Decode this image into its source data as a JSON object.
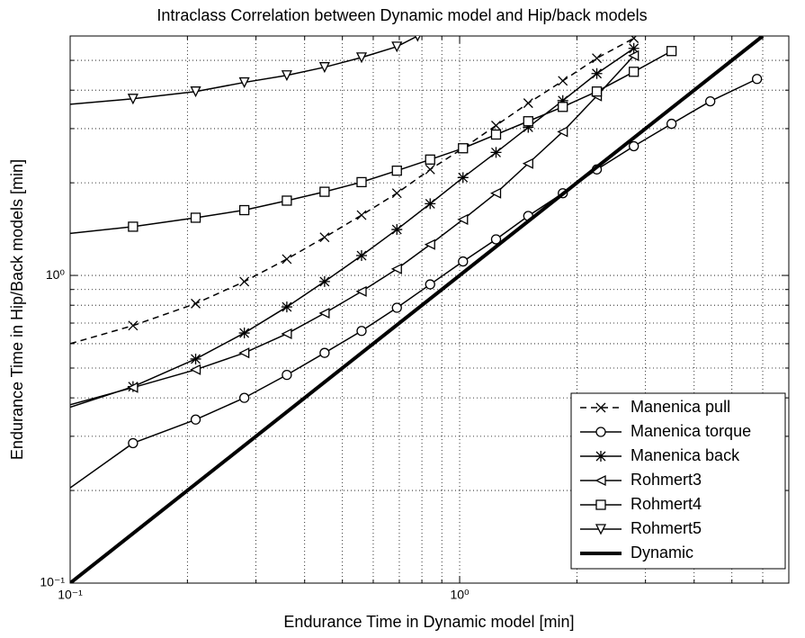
{
  "chart_data": {
    "type": "line",
    "title": "Intraclass Correlation between Dynamic model and Hip/back models",
    "xlabel": "Endurance Time in Dynamic model [min]",
    "ylabel": "Endurance Time in Hip/Back models [min]",
    "xscale": "log",
    "yscale": "log",
    "xlim": [
      0.1,
      7
    ],
    "ylim": [
      0.1,
      6
    ],
    "xticks": [
      {
        "value": 0.1,
        "label": "10⁻¹"
      },
      {
        "value": 1,
        "label": "10⁰"
      }
    ],
    "yticks": [
      {
        "value": 0.1,
        "label": "10⁻¹"
      },
      {
        "value": 1,
        "label": "10⁰"
      }
    ],
    "xminor": [
      0.2,
      0.3,
      0.4,
      0.5,
      0.6,
      0.7,
      0.8,
      0.9,
      2,
      3,
      4,
      5,
      6,
      7
    ],
    "yminor": [
      0.2,
      0.3,
      0.4,
      0.5,
      0.6,
      0.7,
      0.8,
      0.9,
      2,
      3,
      4,
      5,
      6
    ],
    "grid": true,
    "legend": "lower right",
    "series": [
      {
        "name": "Manenica pull",
        "color": "#000",
        "marker": "x",
        "dashed": true,
        "width": 1.5,
        "x": [
          0.1,
          0.145,
          0.21,
          0.28,
          0.36,
          0.45,
          0.56,
          0.69,
          0.84,
          1.02,
          1.24,
          1.5,
          1.84,
          2.25,
          2.8
        ],
        "y": [
          0.6,
          0.687,
          0.81,
          0.955,
          1.13,
          1.33,
          1.57,
          1.85,
          2.21,
          2.59,
          3.07,
          3.63,
          4.29,
          5.08,
          5.9
        ]
      },
      {
        "name": "Manenica torque",
        "color": "#000",
        "marker": "o",
        "dashed": false,
        "width": 1.5,
        "x": [
          0.1,
          0.145,
          0.21,
          0.28,
          0.36,
          0.45,
          0.56,
          0.69,
          0.84,
          1.02,
          1.24,
          1.5,
          1.84,
          2.25,
          2.8,
          3.5,
          4.4,
          5.8
        ],
        "y": [
          0.204,
          0.285,
          0.34,
          0.4,
          0.475,
          0.56,
          0.66,
          0.785,
          0.935,
          1.11,
          1.31,
          1.56,
          1.85,
          2.21,
          2.63,
          3.11,
          3.68,
          4.35
        ]
      },
      {
        "name": "Manenica back",
        "color": "#000",
        "marker": "*",
        "dashed": false,
        "width": 1.5,
        "x": [
          0.1,
          0.145,
          0.21,
          0.28,
          0.36,
          0.45,
          0.56,
          0.69,
          0.84,
          1.02,
          1.24,
          1.5,
          1.84,
          2.25,
          2.8
        ],
        "y": [
          0.373,
          0.435,
          0.535,
          0.65,
          0.79,
          0.955,
          1.16,
          1.41,
          1.71,
          2.08,
          2.51,
          3.03,
          3.7,
          4.53,
          5.47
        ]
      },
      {
        "name": "Rohmert3",
        "color": "#000",
        "marker": "<",
        "dashed": false,
        "width": 1.5,
        "x": [
          0.1,
          0.145,
          0.21,
          0.28,
          0.36,
          0.45,
          0.56,
          0.69,
          0.84,
          1.02,
          1.24,
          1.5,
          1.84,
          2.25,
          2.8
        ],
        "y": [
          0.38,
          0.432,
          0.494,
          0.56,
          0.646,
          0.754,
          0.887,
          1.05,
          1.26,
          1.52,
          1.85,
          2.31,
          2.93,
          3.83,
          5.18
        ]
      },
      {
        "name": "Rohmert4",
        "color": "#000",
        "marker": "s",
        "dashed": false,
        "width": 1.5,
        "x": [
          0.1,
          0.145,
          0.21,
          0.28,
          0.36,
          0.45,
          0.56,
          0.69,
          0.84,
          1.02,
          1.24,
          1.5,
          1.84,
          2.25,
          2.8,
          3.5
        ],
        "y": [
          1.37,
          1.44,
          1.54,
          1.63,
          1.75,
          1.87,
          2.01,
          2.19,
          2.38,
          2.59,
          2.87,
          3.17,
          3.53,
          3.96,
          4.59,
          5.36
        ]
      },
      {
        "name": "Rohmert5",
        "color": "#000",
        "marker": "v",
        "dashed": false,
        "width": 1.5,
        "x": [
          0.1,
          0.145,
          0.21,
          0.28,
          0.36,
          0.45,
          0.56,
          0.69,
          0.78
        ],
        "y": [
          3.6,
          3.75,
          3.96,
          4.24,
          4.47,
          4.75,
          5.11,
          5.54,
          6
        ]
      },
      {
        "name": "Dynamic",
        "color": "#000",
        "marker": "none",
        "dashed": false,
        "width": 4,
        "x": [
          0.1,
          6
        ],
        "y": [
          0.1,
          6
        ]
      }
    ]
  }
}
